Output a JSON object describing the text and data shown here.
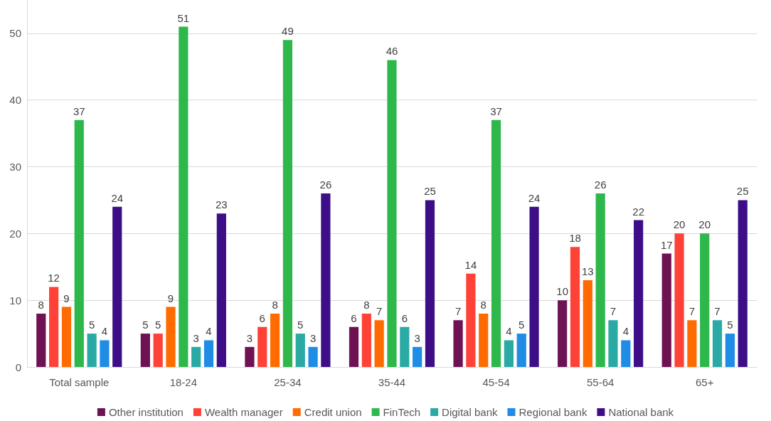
{
  "chart_data": {
    "type": "bar",
    "categories": [
      "Total sample",
      "18-24",
      "25-34",
      "35-44",
      "45-54",
      "55-64",
      "65+"
    ],
    "series": [
      {
        "name": "Other institution",
        "color": "#6e1253",
        "values": [
          8,
          5,
          3,
          6,
          7,
          10,
          17
        ]
      },
      {
        "name": "Wealth manager",
        "color": "#ff4237",
        "values": [
          12,
          5,
          6,
          8,
          14,
          18,
          20
        ]
      },
      {
        "name": "Credit union",
        "color": "#ff6b00",
        "values": [
          9,
          9,
          8,
          7,
          8,
          13,
          7
        ]
      },
      {
        "name": "FinTech",
        "color": "#2eb84c",
        "values": [
          37,
          51,
          49,
          46,
          37,
          26,
          20
        ]
      },
      {
        "name": "Digital bank",
        "color": "#2aaaa5",
        "values": [
          5,
          3,
          5,
          6,
          4,
          7,
          7
        ]
      },
      {
        "name": "Regional bank",
        "color": "#1f8ce6",
        "values": [
          4,
          4,
          3,
          3,
          5,
          4,
          5
        ]
      },
      {
        "name": "National bank",
        "color": "#3d0e88",
        "values": [
          24,
          23,
          26,
          25,
          24,
          22,
          25
        ]
      }
    ],
    "ylim": [
      0,
      55
    ],
    "yticks": [
      0,
      10,
      20,
      30,
      40,
      50
    ],
    "grid": "y",
    "legend": "bottom",
    "data_labels": true
  }
}
